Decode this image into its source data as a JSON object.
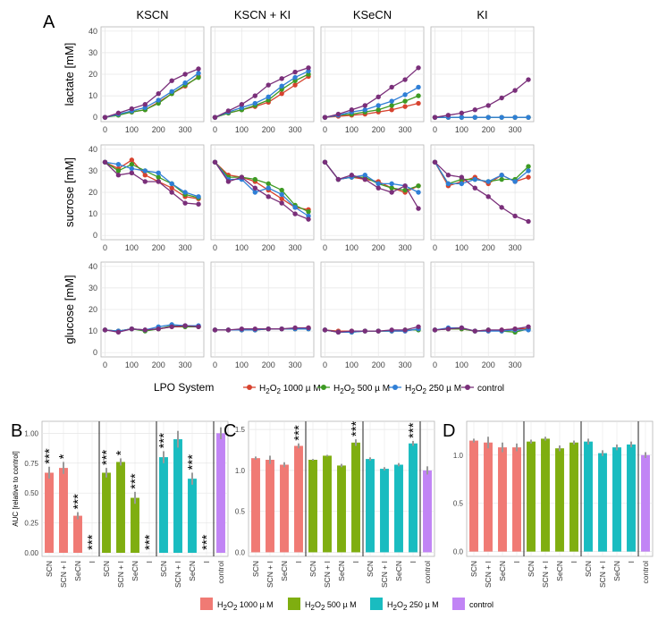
{
  "colors": {
    "h2o2_1000_line": "#d7432f",
    "h2o2_500_line": "#3d9a23",
    "h2o2_250_line": "#2f7fd6",
    "control_line": "#7a2f7a",
    "h2o2_1000_bar": "#f07a74",
    "h2o2_500_bar": "#7fae10",
    "h2o2_250_bar": "#19bcc0",
    "control_bar": "#c184f5"
  },
  "chart_data": [
    {
      "type": "line",
      "panel": "A",
      "panel_label": "A",
      "column_titles": [
        "KSCN",
        "KSCN + KI",
        "KSeCN",
        "KI"
      ],
      "row_labels": [
        "lactate [mM]",
        "sucrose [mM]",
        "glucose [mM]"
      ],
      "x": [
        0,
        50,
        100,
        150,
        200,
        250,
        300,
        350
      ],
      "x_ticks": [
        0,
        100,
        200,
        300
      ],
      "xlim": [
        -15,
        370
      ],
      "ylim": [
        -2,
        42
      ],
      "y_ticks": [
        0,
        10,
        20,
        30,
        40
      ],
      "series_names": [
        "H2O2 1000 µM",
        "H2O2 500 µM",
        "H2O2 250 µM",
        "control"
      ],
      "grid": [
        [
          [
            [
              0,
              1.5,
              2.5,
              3.5,
              7,
              11,
              14.5,
              19
            ],
            [
              0,
              1,
              2.5,
              3.5,
              6.5,
              11,
              15,
              18.5
            ],
            [
              0,
              1.5,
              3,
              4.5,
              8,
              12,
              16,
              20.5
            ],
            [
              0,
              2,
              4,
              6,
              11,
              17,
              20,
              22.5
            ]
          ],
          [
            [
              0,
              2,
              3.5,
              5,
              7,
              11,
              15,
              19
            ],
            [
              0,
              2,
              3.5,
              5.5,
              8,
              13,
              17,
              20
            ],
            [
              0,
              2.5,
              4.5,
              6.5,
              9.5,
              14.5,
              18.5,
              21.5
            ],
            [
              0,
              3,
              6,
              10,
              15,
              18,
              21,
              23
            ]
          ],
          [
            [
              0,
              0.5,
              1,
              1.5,
              2.5,
              3.5,
              5,
              6.5
            ],
            [
              0,
              1,
              1.5,
              2.5,
              3.5,
              5.5,
              7.5,
              10
            ],
            [
              0,
              1,
              2.5,
              3.5,
              5.5,
              7.5,
              10.5,
              14
            ],
            [
              0,
              1.5,
              3.5,
              5.5,
              9.5,
              14,
              17.5,
              23
            ]
          ],
          [
            [
              0,
              0,
              0,
              0,
              0,
              0,
              0,
              0
            ],
            [
              0,
              0,
              0,
              0,
              0,
              0,
              0,
              0
            ],
            [
              0,
              0,
              0,
              0,
              0,
              0,
              0,
              0
            ],
            [
              0,
              1,
              2,
              3.5,
              5.5,
              9,
              12.5,
              17.5
            ]
          ]
        ],
        [
          [
            [
              34,
              31,
              35,
              28,
              25,
              22,
              18,
              17
            ],
            [
              34,
              30,
              33,
              30,
              27,
              24,
              19,
              17.5
            ],
            [
              34,
              33,
              31,
              30,
              29,
              24,
              20,
              18
            ],
            [
              34,
              28,
              29,
              25,
              25,
              20,
              15,
              14.5
            ]
          ],
          [
            [
              34,
              28,
              27,
              25,
              21,
              17,
              13,
              12
            ],
            [
              34,
              27,
              27,
              26,
              24,
              21,
              14,
              11
            ],
            [
              34,
              26,
              26,
              20,
              22,
              19,
              13,
              9
            ],
            [
              34,
              25,
              27,
              22,
              18,
              15,
              10,
              7.5
            ]
          ],
          [
            [
              34,
              26,
              27,
              26,
              25,
              22,
              20,
              23
            ],
            [
              34,
              26,
              27,
              27,
              24,
              22,
              21,
              23
            ],
            [
              34,
              26,
              27,
              28,
              24,
              24,
              23,
              20
            ],
            [
              34,
              26,
              28,
              26,
              22,
              20,
              23,
              12.5
            ]
          ],
          [
            [
              34,
              23,
              25,
              27,
              24,
              28,
              25,
              27
            ],
            [
              34,
              24,
              26,
              26,
              25,
              26,
              26,
              32
            ],
            [
              34,
              24,
              24,
              26,
              25,
              28,
              25,
              30
            ],
            [
              34,
              28,
              27,
              22,
              18,
              13,
              9,
              6.5
            ]
          ]
        ],
        [
          [
            [
              10.5,
              10,
              11,
              10.5,
              11,
              12,
              12,
              12
            ],
            [
              10.5,
              10,
              11,
              10,
              11,
              12.5,
              12,
              12
            ],
            [
              10.5,
              10,
              11,
              10.5,
              12,
              13,
              12.5,
              12.5
            ],
            [
              10.5,
              9.5,
              11,
              10.5,
              11,
              12,
              12.5,
              12
            ]
          ],
          [
            [
              10.5,
              10.5,
              10.5,
              10.5,
              11,
              11,
              11,
              11.5
            ],
            [
              10.5,
              10.5,
              10.5,
              10.5,
              11,
              11,
              11,
              11
            ],
            [
              10.5,
              10.5,
              10.5,
              10.5,
              11,
              11,
              11,
              11
            ],
            [
              10.5,
              10.5,
              11,
              11,
              11,
              11,
              11.5,
              11.5
            ]
          ],
          [
            [
              10.5,
              10,
              10,
              10,
              10,
              10,
              10,
              11
            ],
            [
              10.5,
              9.5,
              9.5,
              10,
              10,
              10,
              10.5,
              10.5
            ],
            [
              10.5,
              9.5,
              9.5,
              10,
              10,
              10,
              10,
              11
            ],
            [
              10.5,
              9.5,
              10,
              10,
              10,
              10.5,
              10.5,
              12
            ]
          ],
          [
            [
              10.5,
              11,
              11,
              10,
              10,
              10.5,
              11,
              11
            ],
            [
              10.5,
              11,
              11,
              10,
              10.5,
              10,
              9.5,
              11
            ],
            [
              10.5,
              11.5,
              11.5,
              10,
              10,
              10,
              10.5,
              10.5
            ],
            [
              10.5,
              11,
              11.5,
              10,
              10.5,
              10.5,
              11,
              12
            ]
          ]
        ]
      ]
    },
    {
      "type": "bar",
      "panel": "B",
      "panel_label": "B",
      "ylabel": "AUC [relative to control]",
      "ylim": [
        -0.03,
        1.1
      ],
      "y_ticks": [
        "0.00",
        "0.25",
        "0.50",
        "0.75",
        "1.00"
      ],
      "categories": [
        "SCN",
        "SCN + I",
        "SeCN",
        "I",
        "SCN",
        "SCN + I",
        "SeCN",
        "I",
        "SCN",
        "SCN + I",
        "SeCN",
        "I",
        "control"
      ],
      "values": [
        0.67,
        0.71,
        0.31,
        0.0,
        0.67,
        0.76,
        0.46,
        0.0,
        0.8,
        0.95,
        0.62,
        0.0,
        1.0
      ],
      "errors": [
        0.05,
        0.05,
        0.03,
        0.0,
        0.04,
        0.03,
        0.05,
        0.0,
        0.05,
        0.07,
        0.05,
        0.0,
        0.05
      ],
      "groups": [
        "h2o2_1000",
        "h2o2_1000",
        "h2o2_1000",
        "h2o2_1000",
        "h2o2_500",
        "h2o2_500",
        "h2o2_500",
        "h2o2_500",
        "h2o2_250",
        "h2o2_250",
        "h2o2_250",
        "h2o2_250",
        "control"
      ],
      "annotations": [
        "***",
        "*",
        "***",
        "***",
        "***",
        "*",
        "***",
        "***",
        "***",
        "",
        "***",
        "***",
        ""
      ]
    },
    {
      "type": "bar",
      "panel": "C",
      "panel_label": "C",
      "ylabel": "",
      "ylim": [
        -0.05,
        1.6
      ],
      "y_ticks": [
        "0.0",
        "0.5",
        "1.0",
        "1.5"
      ],
      "categories": [
        "SCN",
        "SCN + I",
        "SeCN",
        "I",
        "SCN",
        "SCN + I",
        "SeCN",
        "I",
        "SCN",
        "SCN + I",
        "SeCN",
        "I",
        "control"
      ],
      "values": [
        1.15,
        1.13,
        1.07,
        1.3,
        1.13,
        1.18,
        1.06,
        1.34,
        1.14,
        1.02,
        1.07,
        1.33,
        1.0
      ],
      "errors": [
        0.02,
        0.05,
        0.03,
        0.03,
        0.01,
        0.01,
        0.02,
        0.04,
        0.02,
        0.02,
        0.02,
        0.03,
        0.05
      ],
      "groups": [
        "h2o2_1000",
        "h2o2_1000",
        "h2o2_1000",
        "h2o2_1000",
        "h2o2_500",
        "h2o2_500",
        "h2o2_500",
        "h2o2_500",
        "h2o2_250",
        "h2o2_250",
        "h2o2_250",
        "h2o2_250",
        "control"
      ],
      "annotations": [
        "",
        "",
        "",
        "***",
        "",
        "",
        "",
        "***",
        "",
        "",
        "",
        "***",
        ""
      ]
    },
    {
      "type": "bar",
      "panel": "D",
      "panel_label": "D",
      "ylabel": "",
      "ylim": [
        -0.05,
        1.35
      ],
      "y_ticks": [
        "0.0",
        "0.5",
        "1.0"
      ],
      "categories": [
        "SCN",
        "SCN + I",
        "SeCN",
        "I",
        "SCN",
        "SCN + I",
        "SeCN",
        "I",
        "SCN",
        "SCN + I",
        "SeCN",
        "I",
        "control"
      ],
      "values": [
        1.15,
        1.13,
        1.08,
        1.08,
        1.14,
        1.17,
        1.07,
        1.13,
        1.14,
        1.02,
        1.08,
        1.11,
        1.0
      ],
      "errors": [
        0.02,
        0.06,
        0.05,
        0.04,
        0.02,
        0.02,
        0.03,
        0.02,
        0.03,
        0.03,
        0.03,
        0.03,
        0.03
      ],
      "groups": [
        "h2o2_1000",
        "h2o2_1000",
        "h2o2_1000",
        "h2o2_1000",
        "h2o2_500",
        "h2o2_500",
        "h2o2_500",
        "h2o2_500",
        "h2o2_250",
        "h2o2_250",
        "h2o2_250",
        "h2o2_250",
        "control"
      ],
      "annotations": [
        "",
        "",
        "",
        "",
        "",
        "",
        "",
        "",
        "",
        "",
        "",
        "",
        ""
      ]
    }
  ],
  "legend_top": {
    "title": "LPO System",
    "items": [
      {
        "key": "h2o2_1000",
        "pre": "H",
        "sub1": "2",
        "mid": "O",
        "sub2": "2",
        "post": " 1000 µ M"
      },
      {
        "key": "h2o2_500",
        "pre": "H",
        "sub1": "2",
        "mid": "O",
        "sub2": "2",
        "post": " 500 µ M"
      },
      {
        "key": "h2o2_250",
        "pre": "H",
        "sub1": "2",
        "mid": "O",
        "sub2": "2",
        "post": " 250 µ M"
      },
      {
        "key": "control",
        "pre": "control",
        "sub1": "",
        "mid": "",
        "sub2": "",
        "post": ""
      }
    ]
  },
  "legend_bottom": {
    "items": [
      {
        "key": "h2o2_1000",
        "pre": "H",
        "sub1": "2",
        "mid": "O",
        "sub2": "2",
        "post": " 1000 µ M"
      },
      {
        "key": "h2o2_500",
        "pre": "H",
        "sub1": "2",
        "mid": "O",
        "sub2": "2",
        "post": " 500 µ M"
      },
      {
        "key": "h2o2_250",
        "pre": "H",
        "sub1": "2",
        "mid": "O",
        "sub2": "2",
        "post": " 250 µ M"
      },
      {
        "key": "control",
        "pre": "control",
        "sub1": "",
        "mid": "",
        "sub2": "",
        "post": ""
      }
    ]
  }
}
